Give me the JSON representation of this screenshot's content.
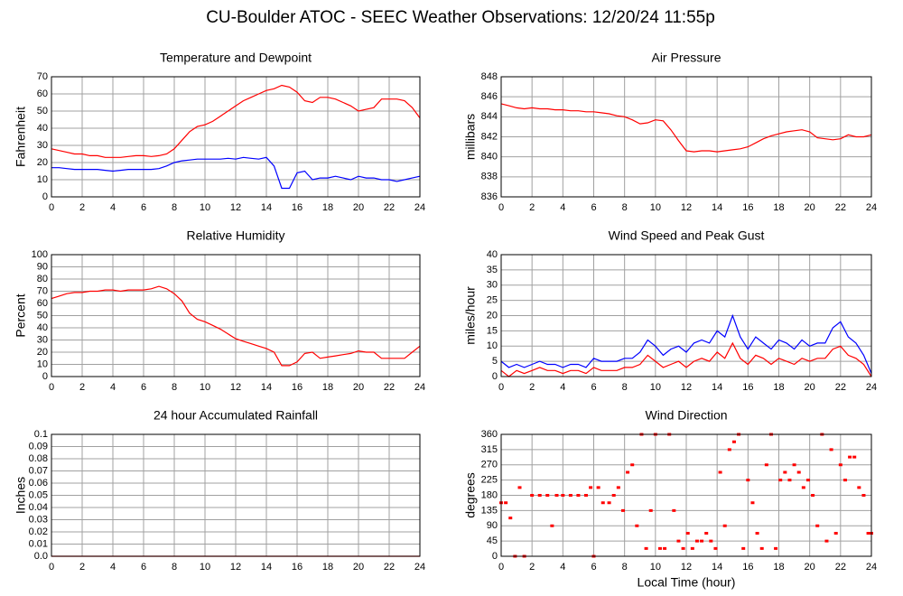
{
  "title": "CU-Boulder ATOC - SEEC Weather Observations: 12/20/24 11:55p",
  "chart_data": [
    {
      "type": "line",
      "title": "Temperature and Dewpoint",
      "ylabel": "Fahrenheit",
      "x": [
        0,
        0.5,
        1,
        1.5,
        2,
        2.5,
        3,
        3.5,
        4,
        4.5,
        5,
        5.5,
        6,
        6.5,
        7,
        7.5,
        8,
        8.5,
        9,
        9.5,
        10,
        10.5,
        11,
        11.5,
        12,
        12.5,
        13,
        13.5,
        14,
        14.5,
        15,
        15.5,
        16,
        16.5,
        17,
        17.5,
        18,
        18.5,
        19,
        19.5,
        20,
        20.5,
        21,
        21.5,
        22,
        22.5,
        23,
        23.5,
        24
      ],
      "series": [
        {
          "color": "#ff0000",
          "values": [
            28,
            27,
            26,
            25,
            25,
            24,
            24,
            23,
            23,
            23,
            23.5,
            24,
            24,
            23.5,
            24,
            25,
            28,
            33,
            38,
            41,
            42,
            44,
            47,
            50,
            53,
            56,
            58,
            60,
            62,
            63,
            65,
            64,
            61,
            56,
            55,
            58,
            58,
            57,
            55,
            53,
            50,
            51,
            52,
            57,
            57,
            57,
            56,
            52,
            46
          ]
        },
        {
          "color": "#0000ff",
          "values": [
            17,
            17,
            16.5,
            16,
            16,
            16,
            16,
            15.5,
            15,
            15.5,
            16,
            16,
            16,
            16,
            16.5,
            18,
            20,
            21,
            21.5,
            22,
            22,
            22,
            22,
            22.5,
            22,
            23,
            22.5,
            22,
            23,
            18,
            5,
            5,
            14,
            15,
            10,
            11,
            11,
            12,
            11,
            10,
            12,
            11,
            11,
            10,
            10,
            9,
            10,
            11,
            12
          ]
        }
      ],
      "xlim": [
        0,
        24
      ],
      "xticks": [
        0,
        2,
        4,
        6,
        8,
        10,
        12,
        14,
        16,
        18,
        20,
        22,
        24
      ],
      "ylim": [
        0,
        70
      ],
      "yticks": [
        0,
        10,
        20,
        30,
        40,
        50,
        60,
        70
      ],
      "grid": true
    },
    {
      "type": "line",
      "title": "Air Pressure",
      "ylabel": "millibars",
      "x": [
        0,
        0.5,
        1,
        1.5,
        2,
        2.5,
        3,
        3.5,
        4,
        4.5,
        5,
        5.5,
        6,
        6.5,
        7,
        7.5,
        8,
        8.5,
        9,
        9.5,
        10,
        10.5,
        11,
        11.5,
        12,
        12.5,
        13,
        13.5,
        14,
        14.5,
        15,
        15.5,
        16,
        16.5,
        17,
        17.5,
        18,
        18.5,
        19,
        19.5,
        20,
        20.5,
        21,
        21.5,
        22,
        22.5,
        23,
        23.5,
        24
      ],
      "series": [
        {
          "color": "#ff0000",
          "values": [
            845.3,
            845.1,
            844.9,
            844.8,
            844.9,
            844.8,
            844.8,
            844.7,
            844.7,
            844.6,
            844.6,
            844.5,
            844.5,
            844.4,
            844.3,
            844.1,
            844,
            843.7,
            843.3,
            843.4,
            843.7,
            843.6,
            842.7,
            841.6,
            840.6,
            840.5,
            840.6,
            840.6,
            840.5,
            840.6,
            840.7,
            840.8,
            841,
            841.4,
            841.8,
            842.1,
            842.3,
            842.5,
            842.6,
            842.7,
            842.5,
            841.9,
            841.8,
            841.7,
            841.8,
            842.2,
            842,
            842,
            842.2
          ]
        }
      ],
      "xlim": [
        0,
        24
      ],
      "xticks": [
        0,
        2,
        4,
        6,
        8,
        10,
        12,
        14,
        16,
        18,
        20,
        22,
        24
      ],
      "ylim": [
        836,
        848
      ],
      "yticks": [
        836,
        838,
        840,
        842,
        844,
        846,
        848
      ],
      "grid": true
    },
    {
      "type": "line",
      "title": "Relative Humidity",
      "ylabel": "Percent",
      "x": [
        0,
        0.5,
        1,
        1.5,
        2,
        2.5,
        3,
        3.5,
        4,
        4.5,
        5,
        5.5,
        6,
        6.5,
        7,
        7.5,
        8,
        8.5,
        9,
        9.5,
        10,
        10.5,
        11,
        11.5,
        12,
        12.5,
        13,
        13.5,
        14,
        14.5,
        15,
        15.5,
        16,
        16.5,
        17,
        17.5,
        18,
        18.5,
        19,
        19.5,
        20,
        20.5,
        21,
        21.5,
        22,
        22.5,
        23,
        23.5,
        24
      ],
      "series": [
        {
          "color": "#ff0000",
          "values": [
            64,
            66,
            68,
            69,
            69,
            70,
            70,
            71,
            71,
            70,
            71,
            71,
            71,
            72,
            74,
            72,
            68,
            62,
            52,
            47,
            45,
            42,
            39,
            35,
            31,
            29,
            27,
            25,
            23,
            20,
            9,
            9,
            12,
            19,
            20,
            15,
            16,
            17,
            18,
            19,
            21,
            20,
            20,
            15,
            15,
            15,
            15,
            20,
            25
          ]
        }
      ],
      "xlim": [
        0,
        24
      ],
      "xticks": [
        0,
        2,
        4,
        6,
        8,
        10,
        12,
        14,
        16,
        18,
        20,
        22,
        24
      ],
      "ylim": [
        0,
        100
      ],
      "yticks": [
        0,
        10,
        20,
        30,
        40,
        50,
        60,
        70,
        80,
        90,
        100
      ],
      "grid": true
    },
    {
      "type": "line",
      "title": "Wind Speed and Peak Gust",
      "ylabel": "miles/hour",
      "x": [
        0,
        0.5,
        1,
        1.5,
        2,
        2.5,
        3,
        3.5,
        4,
        4.5,
        5,
        5.5,
        6,
        6.5,
        7,
        7.5,
        8,
        8.5,
        9,
        9.5,
        10,
        10.5,
        11,
        11.5,
        12,
        12.5,
        13,
        13.5,
        14,
        14.5,
        15,
        15.5,
        16,
        16.5,
        17,
        17.5,
        18,
        18.5,
        19,
        19.5,
        20,
        20.5,
        21,
        21.5,
        22,
        22.5,
        23,
        23.5,
        24
      ],
      "series": [
        {
          "color": "#0000ff",
          "values": [
            5,
            3,
            4,
            3,
            4,
            5,
            4,
            4,
            3,
            4,
            4,
            3,
            6,
            5,
            5,
            5,
            6,
            6,
            8,
            12,
            10,
            7,
            9,
            10,
            8,
            11,
            12,
            11,
            15,
            13,
            20,
            13,
            9,
            13,
            11,
            9,
            12,
            11,
            9,
            12,
            10,
            11,
            11,
            16,
            18,
            13,
            11,
            7,
            1
          ]
        },
        {
          "color": "#ff0000",
          "values": [
            2,
            0,
            2,
            1,
            2,
            3,
            2,
            2,
            1,
            2,
            2,
            1,
            3,
            2,
            2,
            2,
            3,
            3,
            4,
            7,
            5,
            3,
            4,
            5,
            3,
            5,
            6,
            5,
            8,
            6,
            11,
            6,
            4,
            7,
            6,
            4,
            6,
            5,
            4,
            6,
            5,
            6,
            6,
            9,
            10,
            7,
            6,
            4,
            0
          ]
        }
      ],
      "xlim": [
        0,
        24
      ],
      "xticks": [
        0,
        2,
        4,
        6,
        8,
        10,
        12,
        14,
        16,
        18,
        20,
        22,
        24
      ],
      "ylim": [
        0,
        40
      ],
      "yticks": [
        0,
        5,
        10,
        15,
        20,
        25,
        30,
        35,
        40
      ],
      "grid": true
    },
    {
      "type": "line",
      "title": "24 hour Accumulated Rainfall",
      "ylabel": "Inches",
      "x": [
        0,
        24
      ],
      "series": [
        {
          "color": "#ff0000",
          "values": [
            0,
            0
          ]
        }
      ],
      "xlim": [
        0,
        24
      ],
      "xticks": [
        0,
        2,
        4,
        6,
        8,
        10,
        12,
        14,
        16,
        18,
        20,
        22,
        24
      ],
      "ylim": [
        0,
        0.1
      ],
      "yticks": [
        {
          "value": 0,
          "label": "0.0"
        },
        0.01,
        0.02,
        0.03,
        0.04,
        0.05,
        0.06,
        0.07,
        0.08,
        0.09,
        {
          "value": 0.1,
          "label": "0.1"
        }
      ],
      "grid": true
    },
    {
      "type": "scatter",
      "title": "Wind Direction",
      "ylabel": "degrees",
      "xlabel": "Local Time (hour)",
      "x": [
        0,
        0.3,
        0.6,
        0.9,
        1.2,
        1.5,
        2,
        2.5,
        3,
        3.3,
        3.6,
        4,
        4.5,
        5,
        5.5,
        5.8,
        6,
        6.3,
        6.6,
        7,
        7.3,
        7.6,
        7.9,
        8.2,
        8.5,
        8.8,
        9.1,
        9.4,
        9.7,
        10,
        10.3,
        10.6,
        10.9,
        11.2,
        11.5,
        11.8,
        12.1,
        12.4,
        12.7,
        13,
        13.3,
        13.6,
        13.9,
        14.2,
        14.5,
        14.8,
        15.1,
        15.4,
        15.7,
        16,
        16.3,
        16.6,
        16.9,
        17.2,
        17.5,
        17.8,
        18.1,
        18.4,
        18.7,
        19,
        19.3,
        19.6,
        19.9,
        20.2,
        20.5,
        20.8,
        21.1,
        21.4,
        21.7,
        22,
        22.3,
        22.6,
        22.9,
        23.2,
        23.5,
        23.8,
        24
      ],
      "series": [
        {
          "color": "#ff0000",
          "values": [
            158,
            158,
            113,
            0,
            203,
            0,
            180,
            180,
            180,
            90,
            180,
            180,
            180,
            180,
            180,
            203,
            0,
            203,
            158,
            158,
            180,
            203,
            135,
            248,
            270,
            90,
            360,
            23,
            135,
            360,
            23,
            23,
            360,
            135,
            45,
            23,
            68,
            23,
            45,
            45,
            68,
            45,
            23,
            248,
            90,
            315,
            338,
            360,
            23,
            225,
            158,
            68,
            23,
            270,
            360,
            23,
            225,
            248,
            225,
            270,
            248,
            203,
            225,
            180,
            90,
            360,
            45,
            315,
            68,
            270,
            225,
            293,
            293,
            203,
            180,
            68,
            68
          ]
        }
      ],
      "xlim": [
        0,
        24
      ],
      "xticks": [
        0,
        2,
        4,
        6,
        8,
        10,
        12,
        14,
        16,
        18,
        20,
        22,
        24
      ],
      "ylim": [
        0,
        360
      ],
      "yticks": [
        0,
        45,
        90,
        135,
        180,
        225,
        270,
        315,
        360
      ],
      "grid": true
    }
  ]
}
